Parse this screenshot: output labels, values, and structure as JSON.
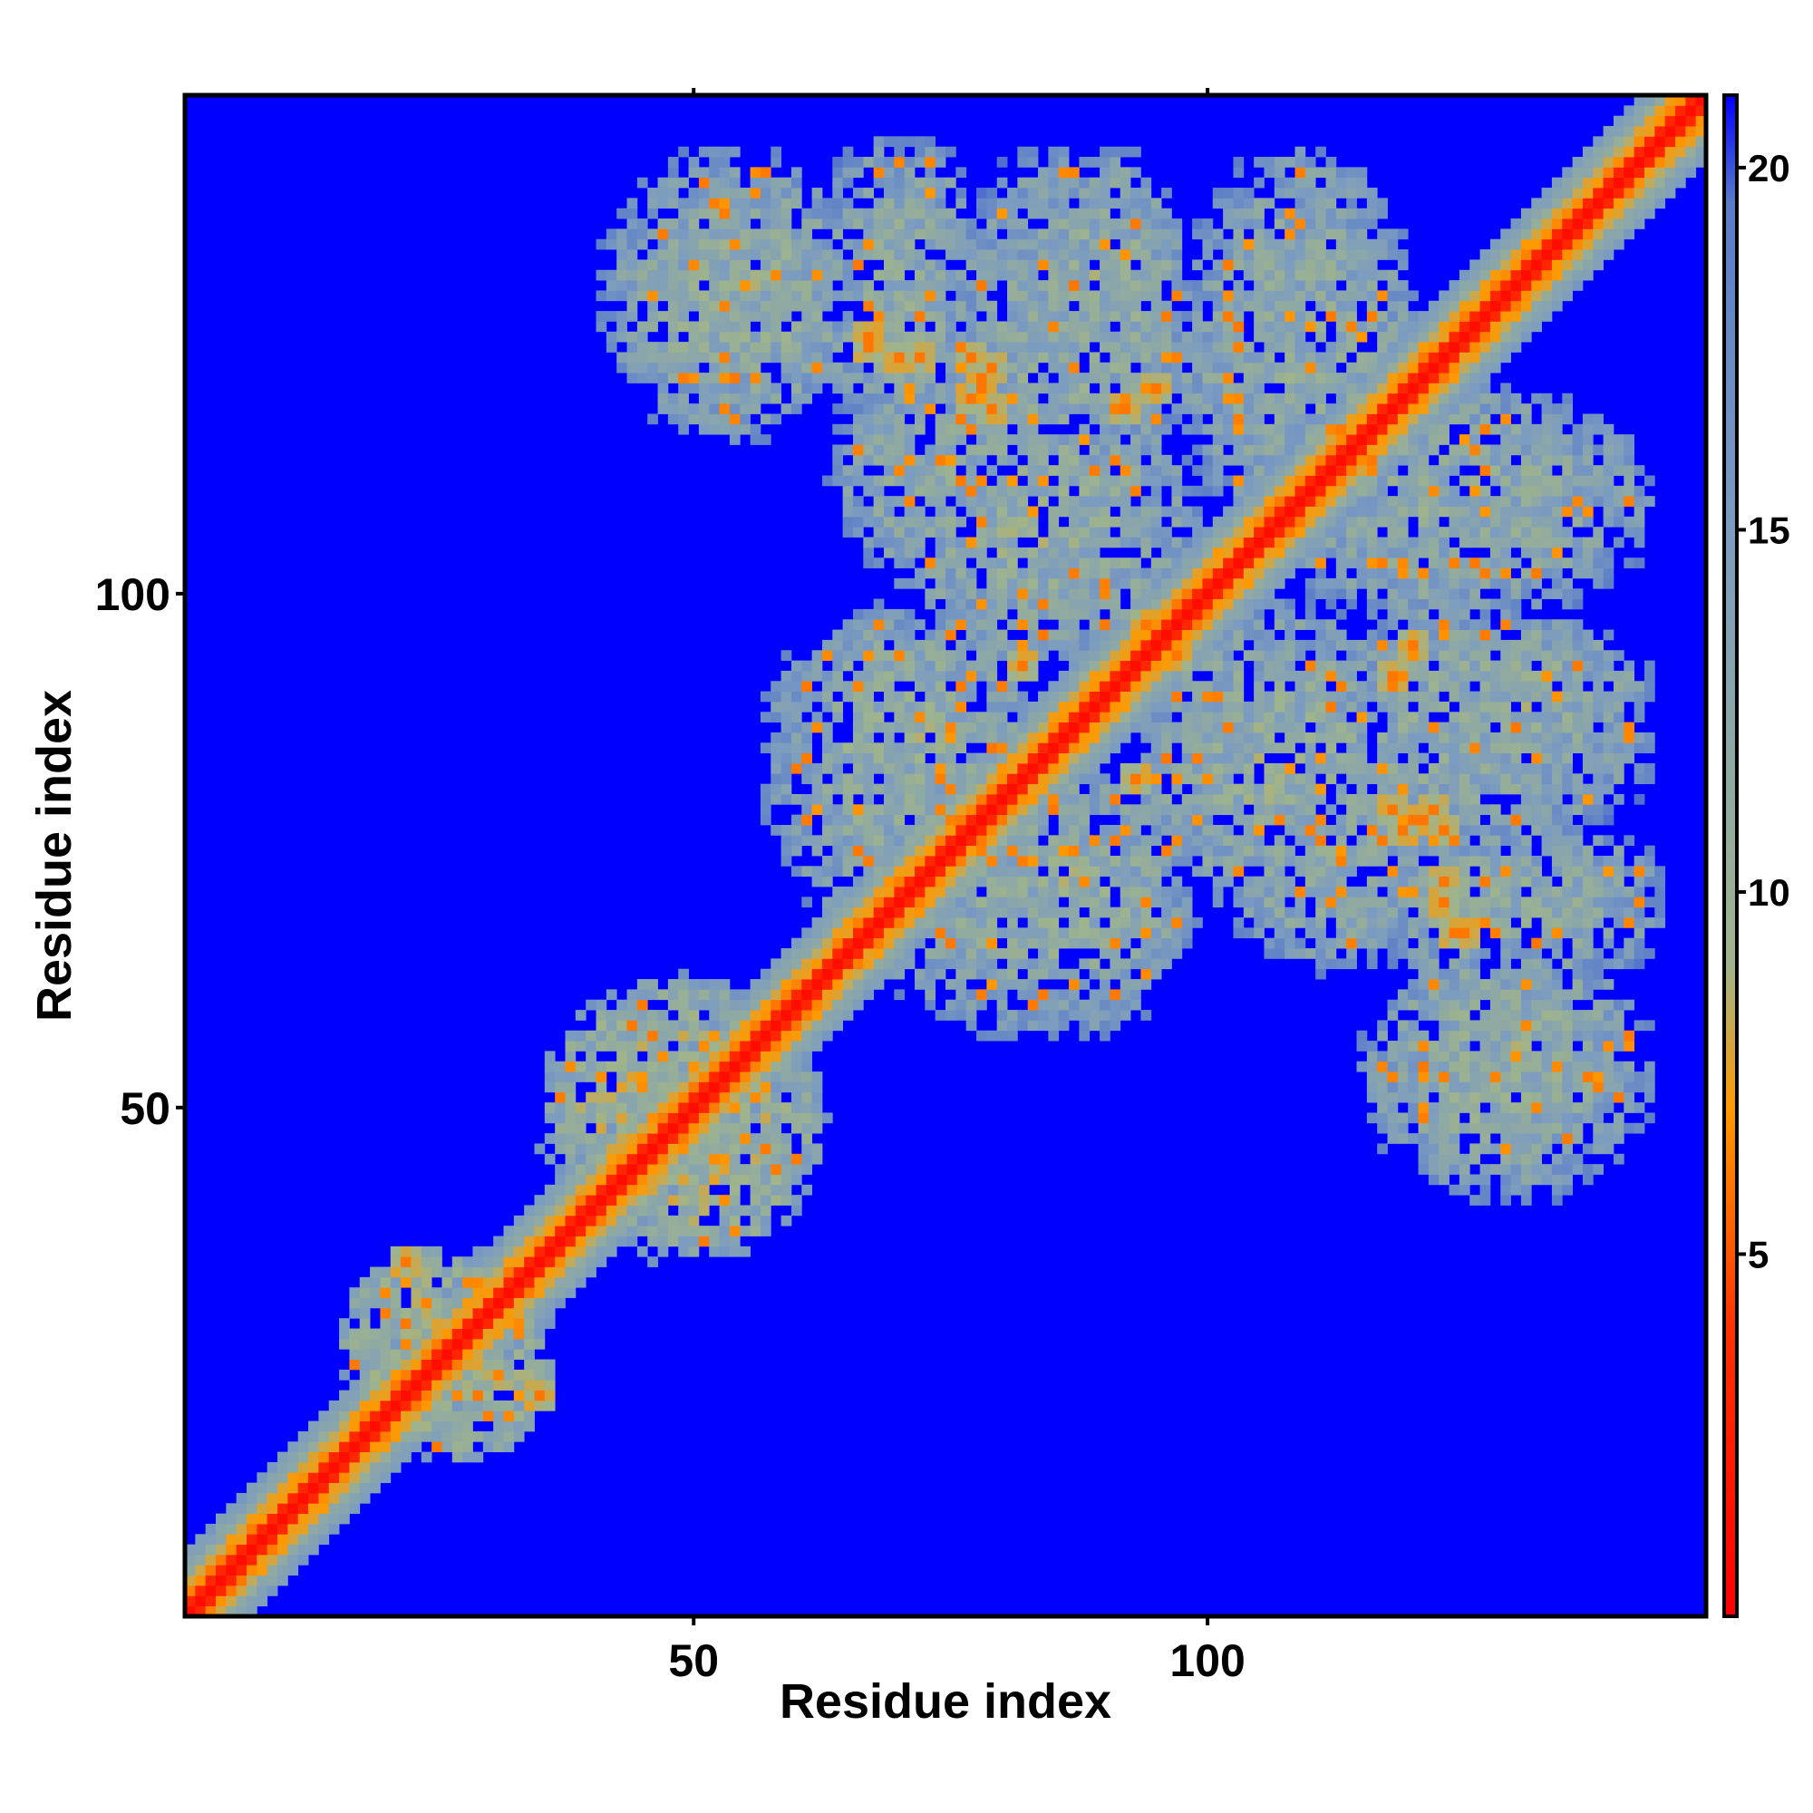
{
  "chart_data": {
    "type": "heatmap",
    "description_kind": "residue-residue distance map (symmetric)",
    "xlabel": "Residue index",
    "ylabel": "Residue index",
    "xlim": [
      1,
      148
    ],
    "ylim": [
      1,
      148
    ],
    "n_residues": 148,
    "x_ticks": [
      50,
      100
    ],
    "y_ticks": [
      50,
      100
    ],
    "colorbar": {
      "range": [
        0,
        21
      ],
      "ticks": [
        5,
        10,
        15,
        20
      ],
      "colors": [
        {
          "value": 0,
          "color": "#ff0000"
        },
        {
          "value": 4,
          "color": "#ff3300"
        },
        {
          "value": 7,
          "color": "#ff9900"
        },
        {
          "value": 9,
          "color": "#9fb48c"
        },
        {
          "value": 15,
          "color": "#7c9cc0"
        },
        {
          "value": 19.5,
          "color": "#5a7cc8"
        },
        {
          "value": 21,
          "color": "#0000ff"
        }
      ],
      "background_value": 21,
      "background_color": "#0000ff"
    },
    "diagonal_band": {
      "core_halfwidth": 1,
      "orange_halfwidth": 3,
      "green_halfwidth": 6
    },
    "contact_blocks": [
      {
        "x_range": [
          64,
          76
        ],
        "y_range": [
          118,
          142
        ],
        "mean_distance": 12.5
      },
      {
        "x_range": [
          78,
          95
        ],
        "y_range": [
          110,
          140
        ],
        "mean_distance": 12.5
      },
      {
        "x_range": [
          100,
          118
        ],
        "y_range": [
          108,
          140
        ],
        "mean_distance": 12.5
      },
      {
        "x_range": [
          60,
          76
        ],
        "y_range": [
          70,
          92
        ],
        "mean_distance": 12.5
      },
      {
        "x_range": [
          78,
          96
        ],
        "y_range": [
          60,
          80
        ],
        "mean_distance": 12.0
      },
      {
        "x_range": [
          96,
          118
        ],
        "y_range": [
          72,
          96
        ],
        "mean_distance": 12.0
      },
      {
        "x_range": [
          118,
          140
        ],
        "y_range": [
          84,
          96
        ],
        "mean_distance": 12.0
      },
      {
        "x_range": [
          118,
          140
        ],
        "y_range": [
          44,
          64
        ],
        "mean_distance": 12.0
      },
      {
        "x_range": [
          104,
          120
        ],
        "y_range": [
          66,
          80
        ],
        "mean_distance": 12.5
      },
      {
        "x_range": [
          116,
          128
        ],
        "y_range": [
          98,
          118
        ],
        "mean_distance": 12.5
      },
      {
        "x_range": [
          40,
          60
        ],
        "y_range": [
          38,
          58
        ],
        "mean_distance": 10.0
      },
      {
        "x_range": [
          20,
          34
        ],
        "y_range": [
          18,
          32
        ],
        "mean_distance": 10.0
      }
    ],
    "close_contact_spots": [
      {
        "x": 77,
        "y": 123
      },
      {
        "x": 78,
        "y": 121
      },
      {
        "x": 79,
        "y": 122
      },
      {
        "x": 118,
        "y": 79
      },
      {
        "x": 119,
        "y": 77
      },
      {
        "x": 120,
        "y": 78
      },
      {
        "x": 67,
        "y": 124
      },
      {
        "x": 70,
        "y": 123
      },
      {
        "x": 92,
        "y": 118
      },
      {
        "x": 125,
        "y": 67
      },
      {
        "x": 123,
        "y": 72
      },
      {
        "x": 120,
        "y": 95
      },
      {
        "x": 93,
        "y": 82
      },
      {
        "x": 97,
        "y": 94
      },
      {
        "x": 35,
        "y": 22
      }
    ]
  }
}
